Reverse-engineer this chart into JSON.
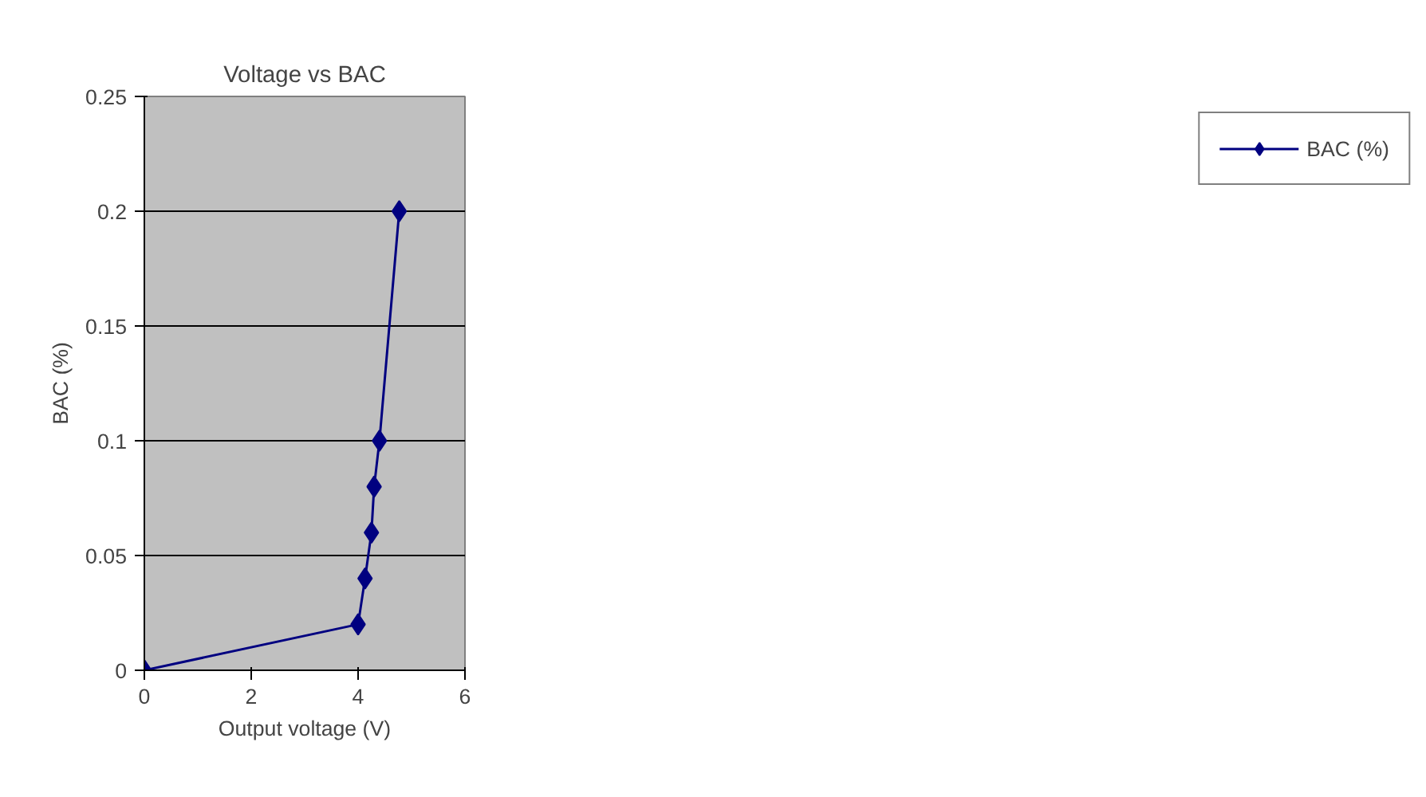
{
  "chart_data": {
    "type": "line",
    "title": "Voltage vs BAC",
    "xlabel": "Output voltage (V)",
    "ylabel": "BAC (%)",
    "series": [
      {
        "name": "BAC (%)",
        "color": "#000080",
        "x": [
          0,
          4.0,
          4.13,
          4.25,
          4.3,
          4.4,
          4.77
        ],
        "values": [
          0,
          0.02,
          0.04,
          0.06,
          0.08,
          0.1,
          0.2
        ]
      }
    ],
    "xlim": [
      0,
      6
    ],
    "xticks": [
      0,
      2,
      4,
      6
    ],
    "ylim": [
      0,
      0.25
    ],
    "yticks": [
      0,
      0.05,
      0.1,
      0.15,
      0.2,
      0.25
    ],
    "grid": "y",
    "legend": "right",
    "marker": "diamond",
    "line_style": "solid"
  }
}
